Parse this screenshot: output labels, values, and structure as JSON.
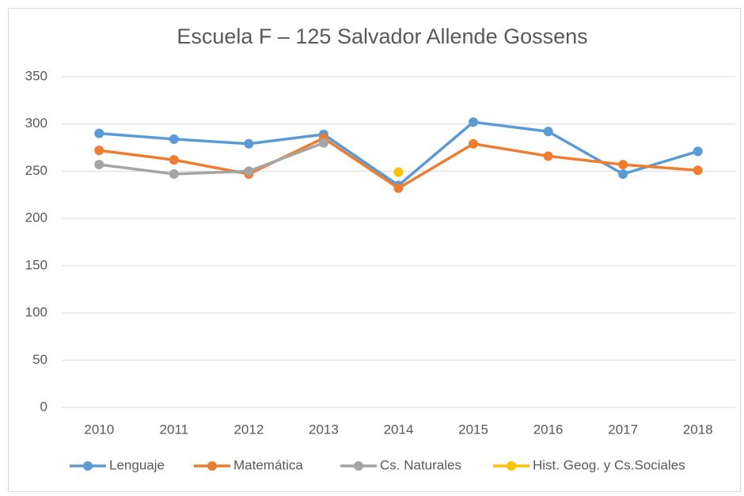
{
  "chart_data": {
    "type": "line",
    "title": "Escuela F – 125 Salvador Allende Gossens",
    "categories": [
      "2010",
      "2011",
      "2012",
      "2013",
      "2014",
      "2015",
      "2016",
      "2017",
      "2018"
    ],
    "series": [
      {
        "name": "Lenguaje",
        "color": "#5b9bd5",
        "values": [
          290,
          284,
          279,
          289,
          235,
          302,
          292,
          247,
          271
        ]
      },
      {
        "name": "Matemática",
        "color": "#ed7d31",
        "values": [
          272,
          262,
          247,
          285,
          232,
          279,
          266,
          257,
          251
        ]
      },
      {
        "name": "Cs. Naturales",
        "color": "#a5a5a5",
        "values": [
          257,
          247,
          250,
          280,
          null,
          null,
          null,
          null,
          null
        ]
      },
      {
        "name": "Hist. Geog. y Cs.Sociales",
        "color": "#ffc000",
        "values": [
          null,
          null,
          null,
          null,
          249,
          null,
          null,
          null,
          null
        ]
      }
    ],
    "ylim": [
      0,
      350
    ],
    "yticks": [
      0,
      50,
      100,
      150,
      200,
      250,
      300,
      350
    ],
    "grid": true,
    "legend": "bottom"
  }
}
